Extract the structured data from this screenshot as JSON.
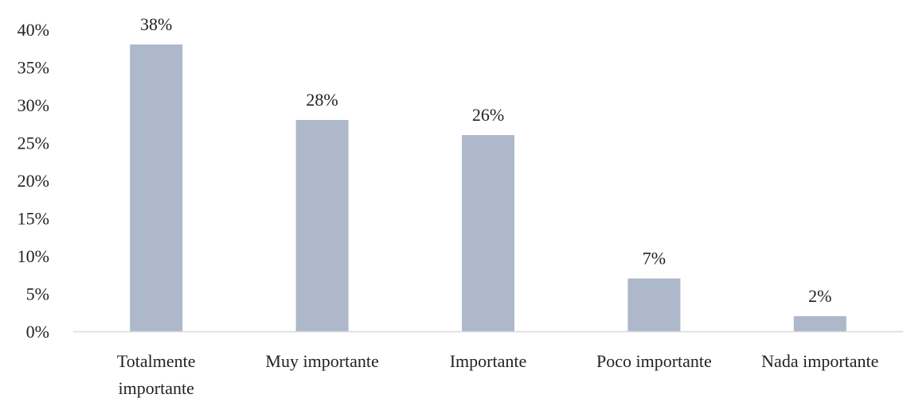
{
  "chart_data": {
    "type": "bar",
    "title": "",
    "xlabel": "",
    "ylabel": "",
    "categories": [
      [
        "Totalmente",
        "importante"
      ],
      [
        "Muy importante"
      ],
      [
        "Importante"
      ],
      [
        "Poco importante"
      ],
      [
        "Nada importante"
      ]
    ],
    "values": [
      38,
      28,
      26,
      7,
      2
    ],
    "data_labels": [
      "38%",
      "28%",
      "26%",
      "7%",
      "2%"
    ],
    "ylim": [
      0,
      40
    ],
    "yticks": [
      0,
      5,
      10,
      15,
      20,
      25,
      30,
      35,
      40
    ],
    "ytick_labels": [
      "0%",
      "5%",
      "10%",
      "15%",
      "20%",
      "25%",
      "30%",
      "35%",
      "40%"
    ],
    "grid": false,
    "legend": "none",
    "bar_color": "#adb9ca",
    "axis_color": "#d9d9d9"
  }
}
